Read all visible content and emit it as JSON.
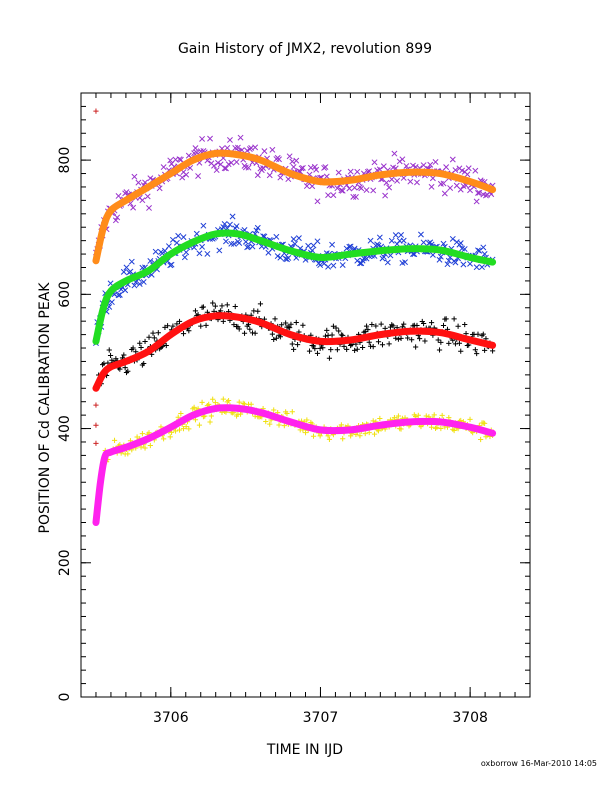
{
  "chart_data": {
    "type": "scatter",
    "title": "Gain History of JMX2, revolution 899",
    "xlabel": "TIME IN IJD",
    "ylabel": "POSITION OF Cd CALIBRATION PEAK",
    "xlim": [
      3705.4,
      3708.4
    ],
    "ylim": [
      0,
      900
    ],
    "xticks": [
      3706,
      3707,
      3708
    ],
    "xtick_labels": [
      "3706",
      "3707",
      "3708"
    ],
    "yticks": [
      0,
      200,
      400,
      600,
      800
    ],
    "ytick_labels": [
      "0",
      "200",
      "400",
      "600",
      "800"
    ],
    "grid": false,
    "footer": "oxborrow 16-Mar-2010 14:05",
    "series": [
      {
        "marker": "x",
        "scatter_color": "#9933cc",
        "fit_color": "#ff8c1a",
        "fit_x": [
          3705.5,
          3705.55,
          3705.6,
          3705.7,
          3705.85,
          3706.0,
          3706.15,
          3706.3,
          3706.45,
          3706.6,
          3706.8,
          3707.0,
          3707.2,
          3707.4,
          3707.6,
          3707.8,
          3708.0,
          3708.15
        ],
        "fit_y": [
          650,
          700,
          725,
          740,
          760,
          780,
          800,
          810,
          808,
          800,
          780,
          768,
          770,
          778,
          782,
          780,
          768,
          756
        ],
        "noise": 24,
        "n_points": 300,
        "outliers": [
          [
            3705.5,
            873
          ]
        ]
      },
      {
        "marker": "x",
        "scatter_color": "#1f3fd6",
        "fit_color": "#22dd22",
        "fit_x": [
          3705.5,
          3705.55,
          3705.6,
          3705.7,
          3705.85,
          3706.0,
          3706.15,
          3706.3,
          3706.45,
          3706.6,
          3706.8,
          3707.0,
          3707.2,
          3707.4,
          3707.6,
          3707.8,
          3708.0,
          3708.15
        ],
        "fit_y": [
          530,
          580,
          605,
          620,
          635,
          660,
          678,
          690,
          690,
          680,
          665,
          655,
          660,
          665,
          668,
          666,
          655,
          648
        ],
        "noise": 20,
        "n_points": 300,
        "outliers": []
      },
      {
        "marker": "+",
        "scatter_color": "#000000",
        "fit_color": "#ff1111",
        "fit_x": [
          3705.5,
          3705.55,
          3705.6,
          3705.7,
          3705.85,
          3706.0,
          3706.15,
          3706.3,
          3706.45,
          3706.6,
          3706.8,
          3707.0,
          3707.2,
          3707.4,
          3707.6,
          3707.8,
          3708.0,
          3708.15
        ],
        "fit_y": [
          460,
          482,
          492,
          500,
          515,
          540,
          560,
          568,
          566,
          558,
          540,
          530,
          532,
          540,
          545,
          543,
          532,
          524
        ],
        "noise": 22,
        "n_points": 300,
        "outliers": [
          [
            3705.5,
            435
          ],
          [
            3705.5,
            405
          ],
          [
            3705.5,
            378
          ]
        ]
      },
      {
        "marker": "+",
        "scatter_color": "#f0e010",
        "fit_color": "#ff22ee",
        "fit_x": [
          3705.5,
          3705.53,
          3705.56,
          3705.6,
          3705.7,
          3705.85,
          3706.0,
          3706.15,
          3706.3,
          3706.45,
          3706.6,
          3706.8,
          3707.0,
          3707.2,
          3707.4,
          3707.6,
          3707.8,
          3708.0,
          3708.15
        ],
        "fit_y": [
          260,
          320,
          358,
          365,
          372,
          385,
          402,
          420,
          430,
          430,
          424,
          410,
          398,
          398,
          405,
          410,
          410,
          402,
          393
        ],
        "noise": 14,
        "n_points": 300,
        "outliers": []
      }
    ]
  }
}
